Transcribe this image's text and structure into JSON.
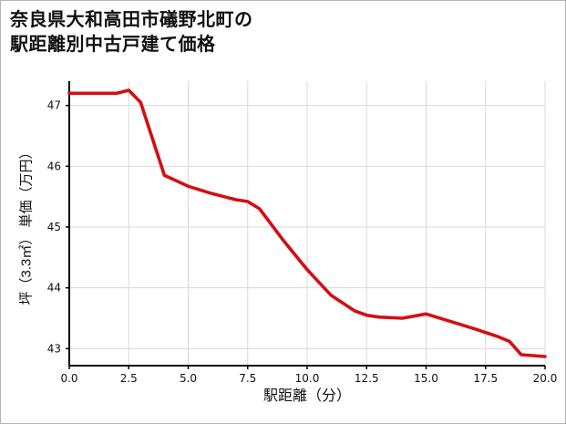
{
  "window": {
    "background": "#ffffff",
    "border_color": "#b5b5b5"
  },
  "title": {
    "line1": "奈良県大和高田市礒野北町の",
    "line2": "駅距離別中古戸建て価格"
  },
  "chart_data": {
    "type": "line",
    "title": "奈良県大和高田市礒野北町の駅距離別中古戸建て価格",
    "xlabel": "駅距離（分）",
    "ylabel": "坪（3.3㎡） 単価（万円）",
    "x": [
      0,
      1,
      2,
      2.5,
      3,
      4,
      5,
      6,
      7,
      7.5,
      8,
      9,
      10,
      11,
      12,
      12.5,
      13,
      14,
      15,
      16,
      17,
      18,
      18.5,
      19,
      20
    ],
    "values": [
      47.2,
      47.2,
      47.2,
      47.25,
      47.05,
      45.85,
      45.67,
      45.55,
      45.45,
      45.42,
      45.3,
      44.78,
      44.3,
      43.88,
      43.62,
      43.55,
      43.52,
      43.5,
      43.57,
      43.45,
      43.33,
      43.2,
      43.12,
      42.9,
      42.87
    ],
    "xlim": [
      0,
      20
    ],
    "ylim": [
      42.72,
      47.4
    ],
    "xticks": [
      0,
      2.5,
      5,
      7.5,
      10,
      12.5,
      15,
      17.5,
      20
    ],
    "xtick_labels": [
      "0.0",
      "2.5",
      "5.0",
      "7.5",
      "10.0",
      "12.5",
      "15.0",
      "17.5",
      "20.0"
    ],
    "yticks": [
      43,
      44,
      45,
      46,
      47
    ],
    "ytick_labels": [
      "43",
      "44",
      "45",
      "46",
      "47"
    ],
    "grid": true,
    "legend": false,
    "line_color": "#d30e12",
    "line_width": 3.6,
    "grid_color": "#d9d9d9",
    "axis_color": "#000000"
  }
}
